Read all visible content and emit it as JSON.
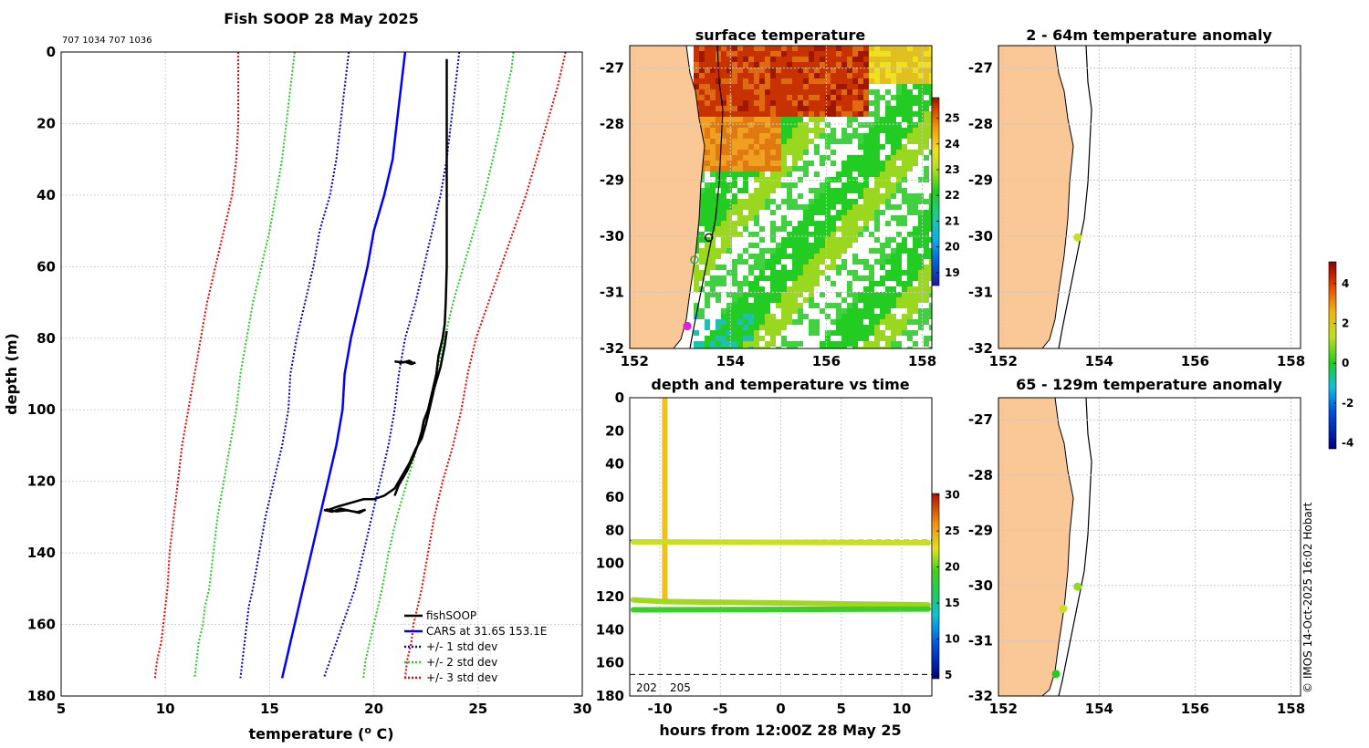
{
  "colors": {
    "fishsoop": "#000000",
    "cars": "#0000ff",
    "std1": "#0000cc",
    "std2": "#22cc22",
    "std3": "#ee0000",
    "land": "#f9c896",
    "ocean_warm": "#c83200",
    "ocean_cool": "#22cc22"
  },
  "chart_data": [
    {
      "id": "profile",
      "type": "line",
      "title": "Fish SOOP 28 May 2025",
      "subtitle": "707 1034 707 1036",
      "xlabel": "temperature (",
      "xlabel_sup": "o",
      "xlabel_end": " C)",
      "ylabel": "depth (m)",
      "xlim": [
        5,
        30
      ],
      "ylim": [
        180,
        0
      ],
      "xticks": [
        "5",
        "10",
        "15",
        "20",
        "25",
        "30"
      ],
      "yticks": [
        "0",
        "20",
        "40",
        "60",
        "80",
        "100",
        "120",
        "140",
        "160",
        "180"
      ],
      "legend": [
        "fishSOOP",
        "CARS at 31.6S 153.1E",
        "+/- 1 std dev",
        "+/- 2 std dev",
        "+/- 3 std dev"
      ],
      "series": [
        {
          "name": "CARS at 31.6S 153.1E",
          "style": "solid",
          "color": "#0000ff",
          "x": [
            21.5,
            21.4,
            21.3,
            21.1,
            20.9,
            20.5,
            20.0,
            19.7,
            19.3,
            18.9,
            18.6,
            18.5,
            18.2,
            17.8,
            17.4,
            17.0,
            16.6,
            16.4,
            16.2,
            16.0,
            15.8,
            15.6
          ],
          "y": [
            0,
            5,
            10,
            20,
            30,
            40,
            50,
            60,
            70,
            80,
            90,
            100,
            110,
            120,
            130,
            140,
            150,
            155,
            160,
            165,
            170,
            175
          ]
        },
        {
          "name": "cars_m1",
          "style": "dotted",
          "color": "#0000cc",
          "x": [
            18.8,
            18.7,
            18.6,
            18.4,
            18.2,
            17.9,
            17.4,
            17.1,
            16.7,
            16.3,
            16.0,
            15.9,
            15.6,
            15.2,
            14.8,
            14.5,
            14.2,
            14.0,
            13.9,
            13.8,
            13.7,
            13.6
          ],
          "y": [
            0,
            5,
            10,
            20,
            30,
            40,
            50,
            60,
            70,
            80,
            90,
            100,
            110,
            120,
            130,
            140,
            150,
            155,
            160,
            165,
            170,
            175
          ]
        },
        {
          "name": "cars_p1",
          "style": "dotted",
          "color": "#0000cc",
          "x": [
            24.1,
            24.0,
            23.9,
            23.7,
            23.5,
            23.2,
            22.8,
            22.4,
            22.0,
            21.5,
            21.2,
            21.0,
            20.7,
            20.3,
            19.9,
            19.5,
            19.1,
            18.8,
            18.5,
            18.2,
            17.9,
            17.6
          ],
          "y": [
            0,
            5,
            10,
            20,
            30,
            40,
            50,
            60,
            70,
            80,
            90,
            100,
            110,
            120,
            130,
            140,
            150,
            155,
            160,
            165,
            170,
            175
          ]
        },
        {
          "name": "cars_m2",
          "style": "dotted",
          "color": "#22cc22",
          "x": [
            16.2,
            16.1,
            16.0,
            15.8,
            15.6,
            15.3,
            15.0,
            14.6,
            14.2,
            13.9,
            13.6,
            13.4,
            13.1,
            12.8,
            12.5,
            12.3,
            12.1,
            11.9,
            11.8,
            11.6,
            11.5,
            11.4
          ],
          "y": [
            0,
            5,
            10,
            20,
            30,
            40,
            50,
            60,
            70,
            80,
            90,
            100,
            110,
            120,
            130,
            140,
            150,
            155,
            160,
            165,
            170,
            175
          ]
        },
        {
          "name": "cars_p2",
          "style": "dotted",
          "color": "#22cc22",
          "x": [
            26.7,
            26.6,
            26.4,
            26.1,
            25.7,
            25.3,
            24.8,
            24.3,
            23.8,
            23.4,
            23.0,
            22.6,
            22.1,
            21.6,
            21.1,
            20.7,
            20.4,
            20.2,
            20.0,
            19.8,
            19.6,
            19.5
          ],
          "y": [
            0,
            5,
            10,
            20,
            30,
            40,
            50,
            60,
            70,
            80,
            90,
            100,
            110,
            120,
            130,
            140,
            150,
            155,
            160,
            165,
            170,
            175
          ]
        },
        {
          "name": "cars_m3",
          "style": "dotted",
          "color": "#ee0000",
          "x": [
            13.5,
            13.5,
            13.5,
            13.5,
            13.4,
            13.2,
            12.8,
            12.4,
            12.0,
            11.7,
            11.4,
            11.1,
            10.8,
            10.6,
            10.4,
            10.2,
            10.1,
            10.0,
            9.9,
            9.8,
            9.6,
            9.5
          ],
          "y": [
            0,
            5,
            10,
            20,
            30,
            40,
            50,
            60,
            70,
            80,
            90,
            100,
            110,
            120,
            130,
            140,
            150,
            155,
            160,
            165,
            170,
            175
          ]
        },
        {
          "name": "cars_p3",
          "style": "dotted",
          "color": "#ee0000",
          "x": [
            29.2,
            29.0,
            28.8,
            28.3,
            27.8,
            27.3,
            26.7,
            26.1,
            25.5,
            24.9,
            24.5,
            24.2,
            23.8,
            23.3,
            22.9,
            22.6,
            22.3,
            22.1,
            21.9,
            21.8,
            21.6,
            21.5
          ],
          "y": [
            0,
            5,
            10,
            20,
            30,
            40,
            50,
            60,
            70,
            80,
            90,
            100,
            110,
            120,
            130,
            140,
            150,
            155,
            160,
            165,
            170,
            175
          ]
        },
        {
          "name": "fishSOOP",
          "style": "solid",
          "color": "#000000",
          "x": [
            23.5,
            23.5,
            23.5,
            23.5,
            23.45,
            23.4,
            23.3,
            23.1,
            23.0,
            22.8,
            22.6,
            22.4,
            22.3,
            22.2,
            22.1,
            21.9,
            21.6,
            21.2,
            21.0
          ],
          "y": [
            2,
            20,
            40,
            60,
            70,
            76,
            80,
            85,
            90,
            95,
            100,
            103,
            106,
            108,
            110,
            113,
            117,
            121,
            124
          ]
        },
        {
          "name": "fishSOOP_b",
          "style": "solid",
          "color": "#000000",
          "x": [
            23.5,
            23.4,
            23.2,
            22.9,
            22.7,
            22.5,
            22.3,
            22.0,
            21.7,
            21.3,
            21.0,
            20.5,
            20.0,
            19.5,
            18.9,
            18.3,
            17.8
          ],
          "y": [
            78,
            82,
            88,
            94,
            99,
            104,
            108,
            111,
            115,
            119,
            122,
            124,
            125,
            125,
            126,
            127,
            128
          ]
        },
        {
          "name": "fishSOOP_c",
          "style": "solid",
          "color": "#000000",
          "x": [
            21.0,
            21.4,
            21.7,
            21.9,
            22.0,
            21.8,
            21.5,
            21.2
          ],
          "y": [
            86.5,
            86.8,
            86.3,
            87.0,
            86.8,
            87.2,
            86.6,
            86.9
          ]
        },
        {
          "name": "fishSOOP_d",
          "style": "solid",
          "color": "#000000",
          "x": [
            17.6,
            18.0,
            18.4,
            18.9,
            19.3,
            19.6,
            19.2,
            18.7,
            18.2,
            17.7
          ],
          "y": [
            128,
            128.5,
            127.6,
            128.3,
            128.8,
            127.9,
            128.6,
            128.1,
            128.4,
            127.8
          ]
        }
      ]
    },
    {
      "id": "sst_map",
      "type": "heatmap",
      "title": "surface temperature",
      "xticks": [
        "152",
        "154",
        "156",
        "158"
      ],
      "yticks": [
        "-27",
        "-28",
        "-29",
        "-30",
        "-31",
        "-32"
      ],
      "xlim": [
        151.9,
        158.2
      ],
      "ylim": [
        -32,
        -26.6
      ],
      "colorbar": {
        "min": 18.5,
        "max": 25.8,
        "ticks": [
          "19",
          "20",
          "21",
          "22",
          "23",
          "24",
          "25"
        ]
      },
      "stations": [
        {
          "lon": 153.55,
          "lat": -30.02,
          "color": "#000000"
        },
        {
          "lon": 153.25,
          "lat": -30.42,
          "color": "#22aa22"
        },
        {
          "lon": 153.1,
          "lat": -31.6,
          "color": "#dd22dd"
        }
      ]
    },
    {
      "id": "depth_time",
      "type": "scatter",
      "title": "depth and temperature vs time",
      "xlabel": "hours from 12:00Z 28 May 25",
      "xlim": [
        -12.5,
        12.5
      ],
      "ylim": [
        180,
        0
      ],
      "xticks": [
        "-10",
        "-5",
        "0",
        "5",
        "10"
      ],
      "yticks": [
        "0",
        "20",
        "40",
        "60",
        "80",
        "100",
        "120",
        "140",
        "160",
        "180"
      ],
      "reference_depths": [
        86,
        167
      ],
      "annotations": [
        "202",
        "205"
      ],
      "colorbar": {
        "min": 4.5,
        "max": 30.2,
        "ticks": [
          "5",
          "10",
          "15",
          "20",
          "25",
          "30"
        ]
      },
      "tracks": [
        {
          "name": "descent",
          "x": [
            -9.6,
            -9.6
          ],
          "y": [
            0,
            122
          ],
          "temp": [
            22.5,
            21.5
          ]
        },
        {
          "name": "top",
          "x": [
            -12.2,
            12.2
          ],
          "y": [
            87,
            87.5
          ],
          "temp": [
            20.5,
            20.5
          ]
        },
        {
          "name": "deep-a",
          "x": [
            -12.2,
            -9.6,
            12.2
          ],
          "y": [
            122,
            123,
            125
          ],
          "temp": [
            19.5,
            19.0,
            18.5
          ]
        },
        {
          "name": "deep-b",
          "x": [
            -12.2,
            12.2
          ],
          "y": [
            128,
            127.5
          ],
          "temp": [
            16.5,
            16.0
          ]
        }
      ]
    },
    {
      "id": "anom_upper",
      "type": "scatter",
      "title": "2 - 64m temperature anomaly",
      "xticks": [
        "152",
        "154",
        "156",
        "158"
      ],
      "yticks": [
        "-27",
        "-28",
        "-29",
        "-30",
        "-31",
        "-32"
      ],
      "xlim": [
        151.9,
        158.2
      ],
      "ylim": [
        -32,
        -26.6
      ],
      "points": [
        {
          "lon": 153.55,
          "lat": -30.02,
          "anomaly": 2.2
        }
      ]
    },
    {
      "id": "anom_lower",
      "type": "scatter",
      "title": "65 - 129m temperature anomaly",
      "xticks": [
        "152",
        "154",
        "156",
        "158"
      ],
      "yticks": [
        "-27",
        "-28",
        "-29",
        "-30",
        "-31",
        "-32"
      ],
      "xlim": [
        151.9,
        158.2
      ],
      "ylim": [
        -32,
        -26.6
      ],
      "points": [
        {
          "lon": 153.55,
          "lat": -30.02,
          "anomaly": 1.6
        },
        {
          "lon": 153.25,
          "lat": -30.42,
          "anomaly": 2.2
        },
        {
          "lon": 153.1,
          "lat": -31.6,
          "anomaly": 0.4
        }
      ],
      "colorbar": {
        "min": -4.3,
        "max": 5.1,
        "ticks": [
          "-4",
          "-2",
          "0",
          "2",
          "4"
        ]
      }
    }
  ],
  "credit": "© IMOS 14-Oct-2025 16:02 Hobart"
}
